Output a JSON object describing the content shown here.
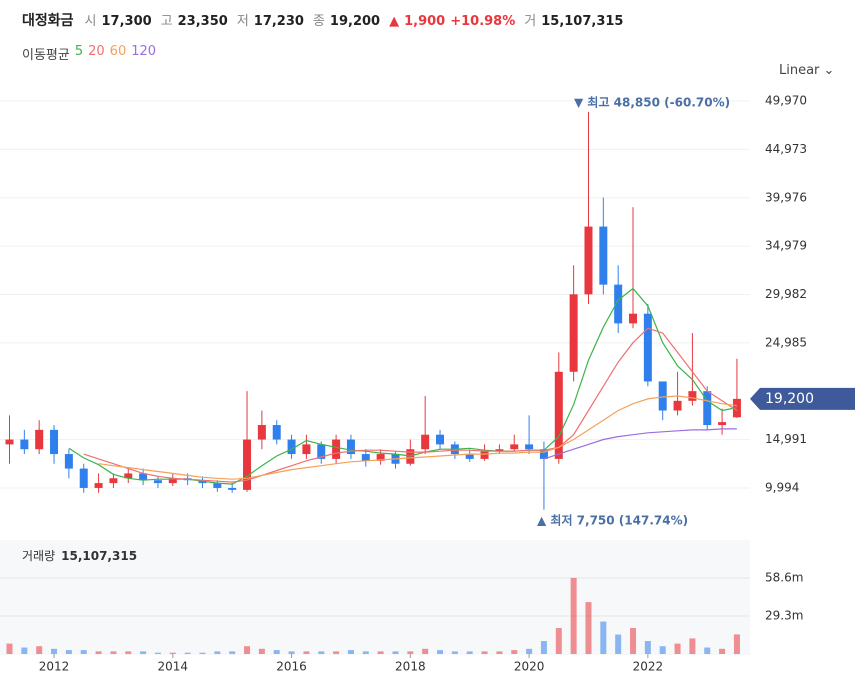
{
  "header": {
    "name": "대정화금",
    "items": [
      {
        "label": "시",
        "value": "17,300"
      },
      {
        "label": "고",
        "value": "23,350"
      },
      {
        "label": "저",
        "value": "17,230"
      },
      {
        "label": "종",
        "value": "19,200"
      }
    ],
    "change": {
      "arrow": "▲",
      "amount": "1,900",
      "percent": "+10.98%"
    },
    "volume": {
      "label": "거",
      "value": "15,107,315"
    }
  },
  "chart_data": {
    "type": "candlestick",
    "grid": true,
    "up_color": "#e8373d",
    "down_color": "#2f80ed",
    "scale_label": "Linear",
    "x": [
      2011.25,
      2011.5,
      2011.75,
      2012,
      2012.25,
      2012.5,
      2012.75,
      2013,
      2013.25,
      2013.5,
      2013.75,
      2014,
      2014.25,
      2014.5,
      2014.75,
      2015,
      2015.25,
      2015.5,
      2015.75,
      2016,
      2016.25,
      2016.5,
      2016.75,
      2017,
      2017.25,
      2017.5,
      2017.75,
      2018,
      2018.25,
      2018.5,
      2018.75,
      2019,
      2019.25,
      2019.5,
      2019.75,
      2020,
      2020.25,
      2020.5,
      2020.75,
      2021,
      2021.25,
      2021.5,
      2021.75,
      2022,
      2022.25,
      2022.5,
      2022.75,
      2023,
      2023.25,
      2023.5
    ],
    "xlim": [
      2011.09,
      2023.72
    ],
    "xticks": [
      2012,
      2014,
      2016,
      2018,
      2020,
      2022
    ],
    "ylim": [
      5140,
      52140
    ],
    "yticks": [
      {
        "value": 9994,
        "label": "9,994"
      },
      {
        "value": 14991,
        "label": "14,991"
      },
      {
        "value": 24985,
        "label": "24,985"
      },
      {
        "value": 29982,
        "label": "29,982"
      },
      {
        "value": 34979,
        "label": "34,979"
      },
      {
        "value": 39976,
        "label": "39,976"
      },
      {
        "value": 44973,
        "label": "44,973"
      },
      {
        "value": 49970,
        "label": "49,970"
      }
    ],
    "open": [
      14500,
      15000,
      14000,
      16000,
      13500,
      12000,
      10000,
      10500,
      11000,
      11500,
      10800,
      10500,
      11000,
      10800,
      10500,
      10000,
      9800,
      15000,
      16500,
      15000,
      13500,
      14500,
      13000,
      15000,
      13500,
      12800,
      13500,
      12500,
      14000,
      15500,
      14500,
      13500,
      13000,
      13800,
      14000,
      14500,
      14000,
      13000,
      22000,
      30000,
      37000,
      31000,
      27000,
      28000,
      21000,
      18000,
      19000,
      20000,
      16500,
      17300
    ],
    "high": [
      17500,
      16000,
      17000,
      16500,
      14000,
      12500,
      11500,
      11500,
      12000,
      12000,
      11200,
      11500,
      11500,
      11200,
      10800,
      10500,
      20000,
      18000,
      17000,
      15500,
      15500,
      14800,
      15500,
      15500,
      14000,
      14000,
      13800,
      15000,
      19500,
      16000,
      14800,
      14000,
      14500,
      14500,
      15500,
      17500,
      14800,
      24000,
      33000,
      48850,
      40000,
      33000,
      39000,
      29000,
      21000,
      22000,
      26000,
      20500,
      18200,
      23350
    ],
    "low": [
      12500,
      13500,
      13500,
      12500,
      11000,
      9500,
      9500,
      10000,
      10500,
      10300,
      10000,
      10200,
      10300,
      10000,
      9600,
      9500,
      9600,
      14000,
      14500,
      13000,
      13000,
      12500,
      12500,
      13000,
      12200,
      12400,
      12000,
      12300,
      13500,
      14000,
      13000,
      12700,
      12800,
      13500,
      13800,
      13500,
      7750,
      12500,
      21000,
      29000,
      30000,
      26000,
      26500,
      20500,
      17000,
      17500,
      18500,
      16000,
      15500,
      17230
    ],
    "close": [
      15000,
      14000,
      16000,
      13500,
      12000,
      10000,
      10500,
      11000,
      11500,
      10800,
      10500,
      11000,
      10800,
      10500,
      10000,
      9800,
      15000,
      16500,
      15000,
      13500,
      14500,
      13000,
      15000,
      13500,
      12800,
      13500,
      12500,
      14000,
      15500,
      14500,
      13500,
      13000,
      13800,
      14000,
      14500,
      14000,
      13000,
      22000,
      30000,
      37000,
      31000,
      27000,
      28000,
      21000,
      18000,
      19000,
      20000,
      16500,
      16800,
      19200
    ],
    "moving_averages": {
      "label": "이동평균",
      "series": [
        {
          "name": "5",
          "color": "#3cb44b",
          "values": [
            null,
            null,
            null,
            null,
            14100,
            13100,
            12400,
            11400,
            11000,
            10800,
            10900,
            10900,
            10900,
            10700,
            10500,
            10400,
            11200,
            12300,
            13300,
            14000,
            14900,
            14500,
            14200,
            13900,
            13800,
            13600,
            13500,
            13300,
            13700,
            14000,
            14000,
            14100,
            13900,
            13800,
            13800,
            13900,
            13900,
            15300,
            18600,
            23200,
            26600,
            29400,
            30600,
            28800,
            25000,
            22600,
            21200,
            19000,
            18000,
            18300
          ]
        },
        {
          "name": "20",
          "color": "#f07070",
          "values": [
            null,
            null,
            null,
            null,
            null,
            13500,
            13000,
            12500,
            12000,
            11500,
            11200,
            11000,
            10900,
            10800,
            10700,
            10600,
            10800,
            11300,
            11800,
            12300,
            12800,
            13200,
            13600,
            13800,
            13900,
            13900,
            13800,
            13700,
            13700,
            13800,
            13900,
            13900,
            13800,
            13800,
            13800,
            13900,
            13900,
            14200,
            15500,
            18000,
            20500,
            23000,
            25000,
            26500,
            26000,
            24000,
            22000,
            20000,
            19000,
            18000
          ]
        },
        {
          "name": "60",
          "color": "#f5a05a",
          "values": [
            null,
            null,
            null,
            null,
            null,
            null,
            12500,
            12300,
            12100,
            11900,
            11700,
            11500,
            11300,
            11100,
            11000,
            10900,
            11000,
            11300,
            11600,
            11900,
            12100,
            12300,
            12500,
            12700,
            12800,
            12900,
            13000,
            13100,
            13200,
            13300,
            13400,
            13500,
            13500,
            13600,
            13600,
            13700,
            13700,
            14200,
            15000,
            16000,
            17000,
            18000,
            18700,
            19200,
            19400,
            19500,
            19300,
            19000,
            18700,
            18500
          ]
        },
        {
          "name": "120",
          "color": "#9b6ee0",
          "values": [
            null,
            null,
            null,
            null,
            null,
            null,
            null,
            null,
            null,
            null,
            null,
            null,
            null,
            null,
            null,
            null,
            null,
            null,
            null,
            null,
            null,
            null,
            null,
            null,
            null,
            null,
            null,
            null,
            null,
            null,
            null,
            null,
            null,
            null,
            null,
            null,
            13000,
            13500,
            14000,
            14500,
            15000,
            15300,
            15500,
            15700,
            15800,
            15900,
            16000,
            16000,
            16100,
            16100
          ]
        }
      ]
    },
    "volume": {
      "label": "거래량",
      "total": "15,107,315",
      "values": [
        8,
        5,
        6,
        4,
        3,
        3,
        2,
        2,
        2,
        2,
        1,
        1,
        1,
        1,
        2,
        2,
        6,
        4,
        3,
        2,
        2,
        2,
        2,
        3,
        2,
        2,
        2,
        2,
        4,
        3,
        2,
        2,
        2,
        2,
        3,
        4,
        10,
        20,
        58.6,
        40,
        25,
        15,
        20,
        10,
        6,
        8,
        12,
        5,
        4,
        15.1
      ],
      "ylim": [
        0,
        84
      ],
      "yticks": [
        {
          "value": 29.3,
          "label": "29.3m"
        },
        {
          "value": 58.6,
          "label": "58.6m"
        }
      ]
    },
    "annotations": {
      "high": "▼ 최고 48,850 (-60.70%)",
      "low": "▲ 최저 7,750 (147.74%)"
    },
    "last_price_label": "19,200"
  }
}
